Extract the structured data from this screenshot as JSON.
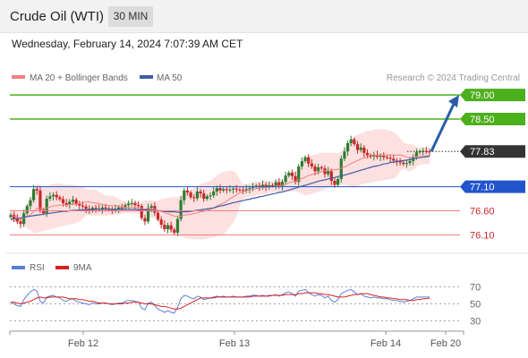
{
  "header": {
    "title": "Crude Oil (WTI)",
    "timeframe": "30 MIN",
    "datetime": "Wednesday, February 14, 2024 7:07:39 AM CET"
  },
  "legend": {
    "ma20": "MA 20 + Bollinger Bands",
    "ma50": "MA 50",
    "credit": "Research © 2024 Trading Central",
    "rsi": "RSI",
    "rsi_ma": "9MA"
  },
  "colors": {
    "ma20": "#f08080",
    "ma50": "#3a5fa8",
    "bands_fill": "#fde0e0",
    "candle_up": "#2e7d32",
    "candle_down": "#c62828",
    "resistance": "#4caf1c",
    "current": "#333333",
    "pivot": "#2255cc",
    "support": "#f08080",
    "arrow": "#2a5ea8",
    "rsi": "#5b7fd8",
    "rsi_ma": "#d62020"
  },
  "chart_data": [
    {
      "type": "candlestick",
      "instrument": "Crude Oil (WTI)",
      "timeframe": "30 MIN",
      "ylim": [
        75.85,
        79.15
      ],
      "xlim": [
        "Feb 11 22:00",
        "Feb 20 00:00"
      ],
      "x_ticks": [
        "Feb 12",
        "Feb 13",
        "Feb 14",
        "Feb 20"
      ],
      "levels": [
        {
          "name": "resistance-2",
          "value": 79.0,
          "label": "79.00"
        },
        {
          "name": "resistance-1",
          "value": 78.5,
          "label": "78.50"
        },
        {
          "name": "last-price",
          "value": 77.83,
          "label": "77.83"
        },
        {
          "name": "pivot",
          "value": 77.1,
          "label": "77.10"
        },
        {
          "name": "support-1",
          "value": 76.6,
          "label": "76.60"
        },
        {
          "name": "support-2",
          "value": 76.1,
          "label": "76.10"
        }
      ],
      "forecast_arrow": {
        "from": 77.83,
        "to": 79.0
      },
      "close_series": [
        76.52,
        76.44,
        76.38,
        76.33,
        76.55,
        76.7,
        76.82,
        77.05,
        77.02,
        76.62,
        76.55,
        76.85,
        76.9,
        76.93,
        76.88,
        76.84,
        76.76,
        76.73,
        76.79,
        76.83,
        76.74,
        76.71,
        76.69,
        76.64,
        76.6,
        76.66,
        76.64,
        76.63,
        76.67,
        76.65,
        76.62,
        76.61,
        76.64,
        76.67,
        76.66,
        76.72,
        76.75,
        76.76,
        76.72,
        76.7,
        76.45,
        76.38,
        76.66,
        76.7,
        76.56,
        76.42,
        76.31,
        76.22,
        76.3,
        76.21,
        76.15,
        76.43,
        76.82,
        77.02,
        76.98,
        76.88,
        76.86,
        77.0,
        76.96,
        76.85,
        76.9,
        76.92,
        77.0,
        77.07,
        77.02,
        77.05,
        77.03,
        77.04,
        77.06,
        77.04,
        77.03,
        77.02,
        77.05,
        77.07,
        77.1,
        77.12,
        77.09,
        77.14,
        77.1,
        77.13,
        77.12,
        77.19,
        77.11,
        77.2,
        77.33,
        77.39,
        77.32,
        77.2,
        77.52,
        77.63,
        77.71,
        77.58,
        77.52,
        77.42,
        77.5,
        77.48,
        77.36,
        77.42,
        77.22,
        77.14,
        77.26,
        77.68,
        77.83,
        78.0,
        78.08,
        77.98,
        77.86,
        77.91,
        77.8,
        77.75,
        77.72,
        77.76,
        77.72,
        77.74,
        77.71,
        77.7,
        77.68,
        77.64,
        77.62,
        77.6,
        77.57,
        77.59,
        77.63,
        77.72,
        77.81,
        77.83,
        77.84,
        77.83,
        77.82
      ],
      "ma20_series": [
        76.52,
        76.49,
        76.46,
        76.44,
        76.45,
        76.48,
        76.52,
        76.59,
        76.65,
        76.65,
        76.64,
        76.66,
        76.68,
        76.7,
        76.71,
        76.72,
        76.72,
        76.72,
        76.73,
        76.73,
        76.74,
        76.75,
        76.77,
        76.78,
        76.78,
        76.77,
        76.76,
        76.75,
        76.73,
        76.71,
        76.71,
        76.71,
        76.7,
        76.69,
        76.68,
        76.68,
        76.67,
        76.67,
        76.67,
        76.66,
        76.65,
        76.64,
        76.64,
        76.64,
        76.63,
        76.61,
        76.59,
        76.56,
        76.54,
        76.52,
        76.49,
        76.48,
        76.49,
        76.51,
        76.52,
        76.53,
        76.54,
        76.56,
        76.58,
        76.59,
        76.61,
        76.63,
        76.66,
        76.7,
        76.73,
        76.76,
        76.8,
        76.85,
        76.89,
        76.93,
        76.97,
        77.0,
        77.02,
        77.03,
        77.04,
        77.06,
        77.07,
        77.08,
        77.09,
        77.09,
        77.1,
        77.11,
        77.12,
        77.13,
        77.15,
        77.18,
        77.2,
        77.21,
        77.24,
        77.27,
        77.3,
        77.33,
        77.35,
        77.37,
        77.39,
        77.41,
        77.43,
        77.44,
        77.45,
        77.45,
        77.46,
        77.48,
        77.51,
        77.54,
        77.58,
        77.61,
        77.64,
        77.67,
        77.7,
        77.71,
        77.72,
        77.74,
        77.75,
        77.76,
        77.76,
        77.76,
        77.76,
        77.75,
        77.75,
        77.76,
        77.74,
        77.71,
        77.7,
        77.71,
        77.72,
        77.73,
        77.74,
        77.74,
        77.74
      ],
      "ma50_series": [
        76.42,
        76.43,
        76.44,
        76.45,
        76.47,
        76.48,
        76.49,
        76.5,
        76.51,
        76.52,
        76.53,
        76.54,
        76.55,
        76.56,
        76.57,
        76.58,
        76.59,
        76.59,
        76.6,
        76.61,
        76.61,
        76.62,
        76.62,
        76.62,
        76.62,
        76.63,
        76.63,
        76.63,
        76.63,
        76.63,
        76.63,
        76.63,
        76.63,
        76.63,
        76.63,
        76.63,
        76.63,
        76.63,
        76.63,
        76.62,
        76.62,
        76.62,
        76.62,
        76.61,
        76.61,
        76.6,
        76.6,
        76.59,
        76.58,
        76.58,
        76.58,
        76.57,
        76.57,
        76.58,
        76.58,
        76.59,
        76.6,
        76.61,
        76.62,
        76.63,
        76.64,
        76.65,
        76.66,
        76.68,
        76.7,
        76.71,
        76.73,
        76.75,
        76.77,
        76.78,
        76.8,
        76.81,
        76.83,
        76.84,
        76.86,
        76.87,
        76.89,
        76.9,
        76.92,
        76.93,
        76.95,
        76.96,
        76.98,
        76.99,
        77.01,
        77.03,
        77.05,
        77.07,
        77.09,
        77.11,
        77.13,
        77.15,
        77.17,
        77.19,
        77.21,
        77.23,
        77.24,
        77.26,
        77.28,
        77.29,
        77.31,
        77.32,
        77.34,
        77.36,
        77.38,
        77.4,
        77.42,
        77.44,
        77.46,
        77.48,
        77.5,
        77.52,
        77.53,
        77.55,
        77.57,
        77.58,
        77.6,
        77.61,
        77.62,
        77.63,
        77.64,
        77.65,
        77.66,
        77.68,
        77.69,
        77.7,
        77.71,
        77.72,
        77.73
      ]
    },
    {
      "type": "line",
      "title": "RSI",
      "ylim": [
        20,
        80
      ],
      "y_ticks": [
        70,
        50,
        30
      ],
      "series": [
        {
          "name": "RSI",
          "values": [
            52,
            50,
            48,
            47,
            55,
            60,
            64,
            67,
            65,
            53,
            51,
            58,
            59,
            60,
            58,
            57,
            54,
            53,
            55,
            56,
            53,
            52,
            51,
            50,
            49,
            51,
            50,
            50,
            51,
            51,
            50,
            49,
            50,
            51,
            51,
            53,
            54,
            54,
            53,
            52,
            45,
            43,
            51,
            52,
            48,
            44,
            42,
            40,
            42,
            40,
            39,
            46,
            56,
            60,
            59,
            57,
            56,
            59,
            58,
            55,
            56,
            57,
            58,
            59,
            58,
            59,
            58,
            58,
            59,
            58,
            58,
            58,
            59,
            59,
            60,
            60,
            59,
            60,
            59,
            60,
            60,
            61,
            59,
            61,
            63,
            64,
            62,
            59,
            65,
            66,
            67,
            63,
            61,
            59,
            61,
            60,
            57,
            59,
            54,
            52,
            55,
            62,
            64,
            66,
            67,
            64,
            61,
            62,
            59,
            58,
            57,
            58,
            57,
            57,
            56,
            56,
            55,
            54,
            54,
            53,
            52,
            53,
            54,
            56,
            58,
            58,
            58,
            58,
            58
          ]
        },
        {
          "name": "9MA",
          "values": [
            52,
            52,
            51,
            50,
            51,
            52,
            53,
            55,
            57,
            58,
            57,
            57,
            58,
            58,
            58,
            58,
            58,
            57,
            56,
            56,
            56,
            55,
            55,
            54,
            53,
            53,
            52,
            51,
            51,
            51,
            50,
            50,
            50,
            50,
            50,
            51,
            51,
            52,
            52,
            52,
            51,
            50,
            50,
            50,
            49,
            48,
            47,
            47,
            46,
            45,
            44,
            44,
            45,
            47,
            49,
            51,
            53,
            55,
            57,
            57,
            57,
            57,
            57,
            58,
            58,
            58,
            58,
            58,
            58,
            58,
            58,
            58,
            58,
            58,
            59,
            59,
            59,
            59,
            59,
            59,
            60,
            60,
            60,
            60,
            61,
            61,
            61,
            61,
            62,
            62,
            63,
            63,
            63,
            63,
            62,
            62,
            61,
            61,
            60,
            59,
            58,
            58,
            58,
            59,
            60,
            61,
            61,
            62,
            62,
            62,
            61,
            60,
            59,
            58,
            58,
            57,
            57,
            56,
            56,
            55,
            55,
            55,
            54,
            54,
            55,
            55,
            56,
            56,
            57
          ]
        }
      ]
    }
  ]
}
